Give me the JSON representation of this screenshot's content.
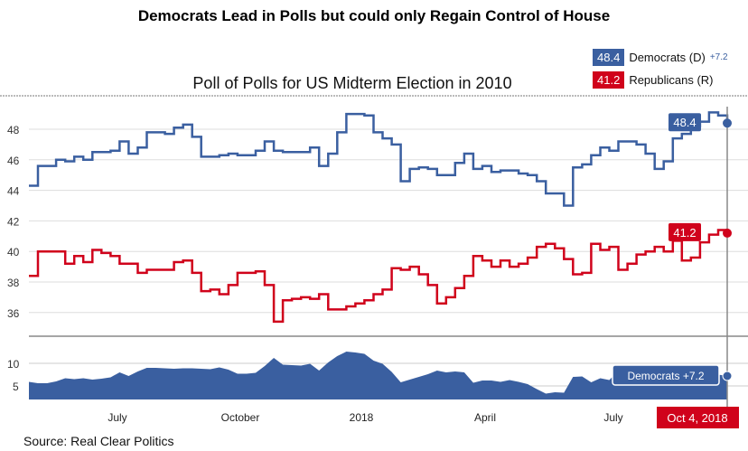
{
  "title": "Democrats Lead in Polls but could only Regain Control of House",
  "source": "Source: Real Clear Politics",
  "chart_data": {
    "type": "line",
    "title": "Poll of Polls for US Midterm Election in 2010",
    "x_start": "2017-04-16",
    "x_end": "2018-10-04",
    "frequency": "weekly",
    "x_ticks": [
      "July",
      "October",
      "2018",
      "April",
      "July"
    ],
    "y_ticks": [
      36,
      38,
      40,
      42,
      44,
      46,
      48
    ],
    "ylim": [
      34.5,
      49.5
    ],
    "grid": true,
    "legend_position": "top-right",
    "series": [
      {
        "name": "Democrats (D)",
        "color": "#3a5fa0",
        "latest": "48.4",
        "change": "+7.2",
        "values": [
          44.3,
          45.6,
          45.6,
          46.0,
          45.9,
          46.2,
          46.0,
          46.5,
          46.5,
          46.6,
          47.2,
          46.4,
          46.8,
          47.8,
          47.8,
          47.7,
          48.1,
          48.3,
          47.5,
          46.2,
          46.2,
          46.3,
          46.4,
          46.3,
          46.3,
          46.6,
          47.2,
          46.6,
          46.5,
          46.5,
          46.5,
          46.8,
          45.6,
          46.4,
          47.8,
          49.0,
          49.0,
          48.9,
          47.8,
          47.4,
          47.0,
          44.6,
          45.4,
          45.5,
          45.4,
          45.0,
          45.0,
          45.8,
          46.4,
          45.4,
          45.6,
          45.2,
          45.3,
          45.3,
          45.1,
          45.0,
          44.6,
          43.8,
          43.8,
          43.0,
          45.5,
          45.7,
          46.3,
          46.8,
          46.6,
          47.2,
          47.2,
          47.0,
          46.4,
          45.4,
          45.9,
          47.4,
          47.7,
          48.2,
          48.5,
          49.1,
          48.9,
          48.4
        ]
      },
      {
        "name": "Republicans (R)",
        "color": "#d0021b",
        "latest": "41.2",
        "values": [
          38.4,
          40.0,
          40.0,
          40.0,
          39.2,
          39.7,
          39.3,
          40.1,
          39.9,
          39.7,
          39.2,
          39.2,
          38.6,
          38.8,
          38.8,
          38.8,
          39.3,
          39.4,
          38.6,
          37.4,
          37.5,
          37.2,
          37.8,
          38.6,
          38.6,
          38.7,
          37.8,
          35.4,
          36.8,
          36.9,
          37.0,
          36.9,
          37.2,
          36.2,
          36.2,
          36.4,
          36.6,
          36.8,
          37.2,
          37.5,
          38.9,
          38.8,
          39.0,
          38.5,
          37.8,
          36.6,
          37.0,
          37.6,
          38.4,
          39.7,
          39.4,
          39.0,
          39.4,
          39.0,
          39.2,
          39.6,
          40.3,
          40.5,
          40.2,
          39.5,
          38.5,
          38.6,
          40.5,
          40.1,
          40.3,
          38.8,
          39.2,
          39.8,
          40.0,
          40.3,
          40.0,
          40.7,
          39.4,
          39.6,
          40.6,
          41.1,
          41.4,
          41.2
        ]
      }
    ],
    "spread_panel": {
      "type": "area",
      "series": "Democrats spread",
      "y_ticks": [
        5,
        10
      ],
      "ylim": [
        2,
        12
      ],
      "label": "Democrats +7.2",
      "color": "#3a5fa0"
    },
    "crosshair_date": "Oct 4, 2018"
  }
}
